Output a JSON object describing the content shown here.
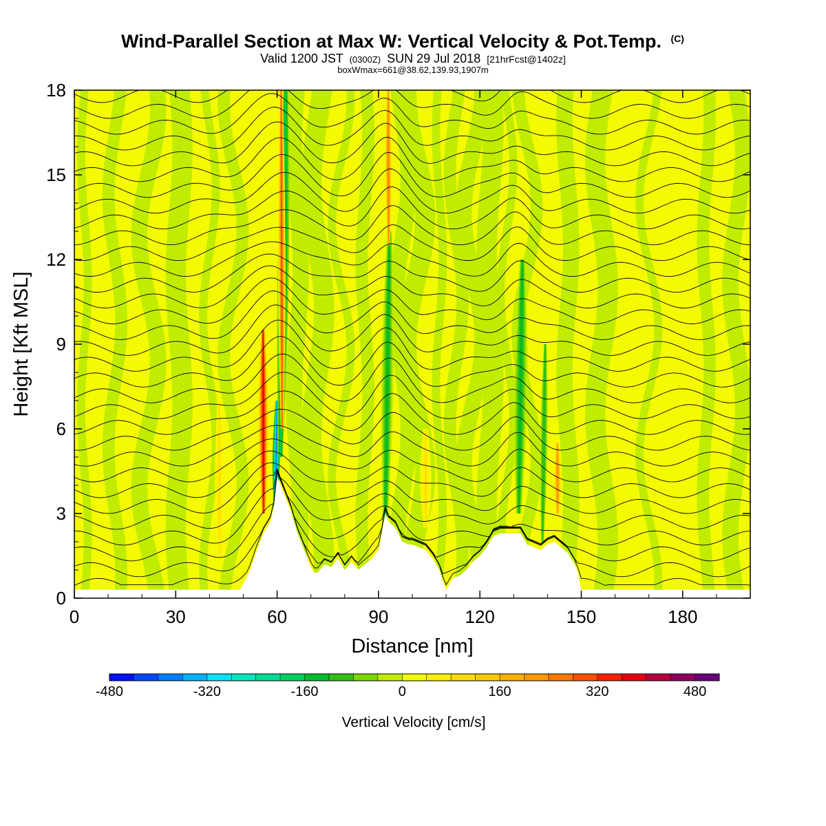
{
  "title": {
    "line1": "Wind-Parallel Section at Max W: Vertical Velocity & Pot.Temp.",
    "line1_mark": "(C)",
    "line2_a": "Valid 1200 JST",
    "line2_b": "(0300Z)",
    "line2_c": "SUN 29 Jul 2018",
    "line2_d": "[21hrFcst@1402z]",
    "line3": "boxWmax=661@38.62,139.93,1907m"
  },
  "chart_data": {
    "type": "heatmap",
    "description_fields": "vertical velocity (filled) and potential temperature (contours) cross-section",
    "xlabel": "Distance [nm]",
    "ylabel": "Height [Kft MSL]",
    "xlim": [
      0,
      200
    ],
    "ylim": [
      0,
      18
    ],
    "xticks": [
      0,
      30,
      60,
      90,
      120,
      150,
      180
    ],
    "yticks": [
      0,
      3,
      6,
      9,
      12,
      15,
      18
    ],
    "terrain": {
      "x": [
        0,
        49,
        50,
        52,
        54,
        56,
        58,
        59,
        60,
        62,
        64,
        65,
        66,
        67,
        68,
        69,
        70,
        71,
        72,
        74,
        76,
        78,
        80,
        82,
        84,
        86,
        88,
        90,
        91,
        92,
        93,
        95,
        97,
        99,
        100,
        104,
        106,
        108,
        109,
        110,
        111,
        112,
        114,
        116,
        118,
        120,
        122,
        124,
        126,
        128,
        130,
        132,
        134,
        136,
        138,
        140,
        142,
        144,
        146,
        148,
        149,
        150,
        200
      ],
      "y": [
        0.3,
        0.3,
        0.5,
        1.0,
        1.7,
        2.3,
        2.7,
        3.2,
        4.3,
        3.7,
        3.1,
        2.7,
        2.3,
        2.0,
        1.7,
        1.4,
        1.1,
        0.9,
        0.9,
        1.2,
        1.1,
        1.4,
        1.0,
        1.3,
        1.0,
        1.2,
        1.4,
        1.7,
        2.3,
        3.0,
        2.7,
        2.5,
        2.0,
        1.9,
        1.9,
        1.7,
        1.4,
        1.0,
        0.6,
        0.3,
        0.5,
        0.7,
        0.8,
        1.0,
        1.3,
        1.5,
        1.8,
        2.2,
        2.3,
        2.3,
        2.3,
        2.3,
        1.9,
        1.8,
        1.7,
        1.9,
        2.0,
        1.8,
        1.6,
        1.2,
        0.9,
        0.3,
        0.3
      ]
    },
    "updrafts": [
      {
        "x": 56,
        "y0": 3,
        "y1": 9.5,
        "w": 1.3,
        "value": 380
      },
      {
        "x": 61.5,
        "y0": 6,
        "y1": 18,
        "w": 1.0,
        "value": 300
      },
      {
        "x": 93,
        "y0": 12.5,
        "y1": 18,
        "w": 0.9,
        "value": 240
      },
      {
        "x": 43,
        "y0": 1.5,
        "y1": 7,
        "w": 1.2,
        "value": 100
      },
      {
        "x": 104,
        "y0": 2.5,
        "y1": 6,
        "w": 1.5,
        "value": 100
      },
      {
        "x": 143,
        "y0": 3,
        "y1": 5.5,
        "w": 1.0,
        "value": 220
      }
    ],
    "downdrafts": [
      {
        "x": 59.5,
        "y0": 3,
        "y1": 7,
        "w": 1.0,
        "value": -400
      },
      {
        "x": 61,
        "y0": 5,
        "y1": 18,
        "w": 1.5,
        "value": -200
      },
      {
        "x": 92,
        "y0": 2.5,
        "y1": 13,
        "w": 1.6,
        "value": -160
      },
      {
        "x": 131.5,
        "y0": 3,
        "y1": 12,
        "w": 1.8,
        "value": -160
      },
      {
        "x": 138.5,
        "y0": 2,
        "y1": 9,
        "w": 1.0,
        "value": -120
      }
    ],
    "colorbar": {
      "title": "Vertical Velocity [cm/s]",
      "min": -480,
      "max": 520,
      "step": 40,
      "tick_values": [
        -480,
        -320,
        -160,
        0,
        160,
        320,
        480
      ],
      "tick_labels": [
        "-480",
        "-320",
        "-160",
        "0",
        "160",
        "320",
        "480"
      ],
      "colors": [
        "#0010ff",
        "#0048ff",
        "#0080ff",
        "#00b4ff",
        "#00e4ff",
        "#00e8c0",
        "#00dc90",
        "#00d060",
        "#00bc28",
        "#32c014",
        "#78d800",
        "#c0ec00",
        "#f4fa00",
        "#fff000",
        "#ffdc00",
        "#ffc800",
        "#ffb000",
        "#ff9800",
        "#ff7800",
        "#ff5000",
        "#ff2000",
        "#e80010",
        "#b8003c",
        "#900060",
        "#6c007c"
      ]
    }
  }
}
